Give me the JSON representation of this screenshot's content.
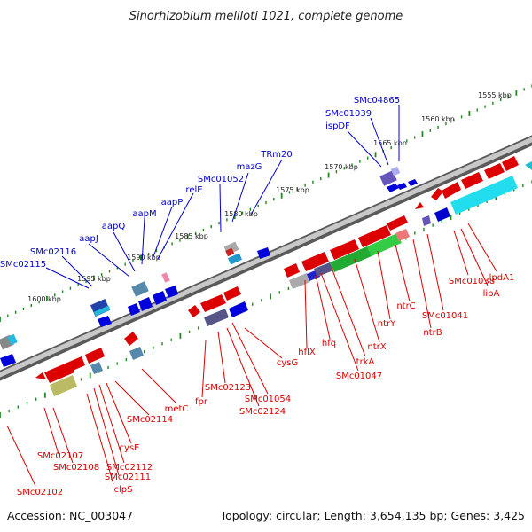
{
  "title": "Sinorhizobium meliloti 1021, complete genome",
  "footer": {
    "accession": "Accession: NC_003047",
    "topology": "Topology: circular; Length: 3,654,135 bp; Genes: 3,425"
  },
  "colors": {
    "forward_label": "#0000cc",
    "reverse_label": "#dd0000",
    "backbone": "#888888",
    "tick": "#228822"
  },
  "kbp_labels": [
    "1555 kbp",
    "1560 kbp",
    "1565 kbp",
    "1570 kbp",
    "1575 kbp",
    "1580 kbp",
    "1585 kbp",
    "1590 kbp",
    "1595 kbp",
    "1600 kbp"
  ],
  "forward_genes": [
    "SMc04865",
    "SMc01039",
    "ispDF",
    "TRm20",
    "mazG",
    "SMc01052",
    "relE",
    "aapP",
    "aapM",
    "aapQ",
    "aapJ",
    "SMc02116",
    "SMc02115"
  ],
  "reverse_genes": [
    "lpdA1",
    "SMc01038",
    "lipA",
    "SMc01041",
    "ntrB",
    "ntrC",
    "ntrY",
    "ntrX",
    "trkA",
    "SMc01047",
    "hfq",
    "hflX",
    "cysG",
    "SMc01054",
    "SMc02124",
    "SMc02123",
    "fpr",
    "metC",
    "SMc02114",
    "cysE",
    "SMc02112",
    "SMc02111",
    "clpS",
    "SMc02108",
    "SMc02107",
    "SMc02102"
  ]
}
